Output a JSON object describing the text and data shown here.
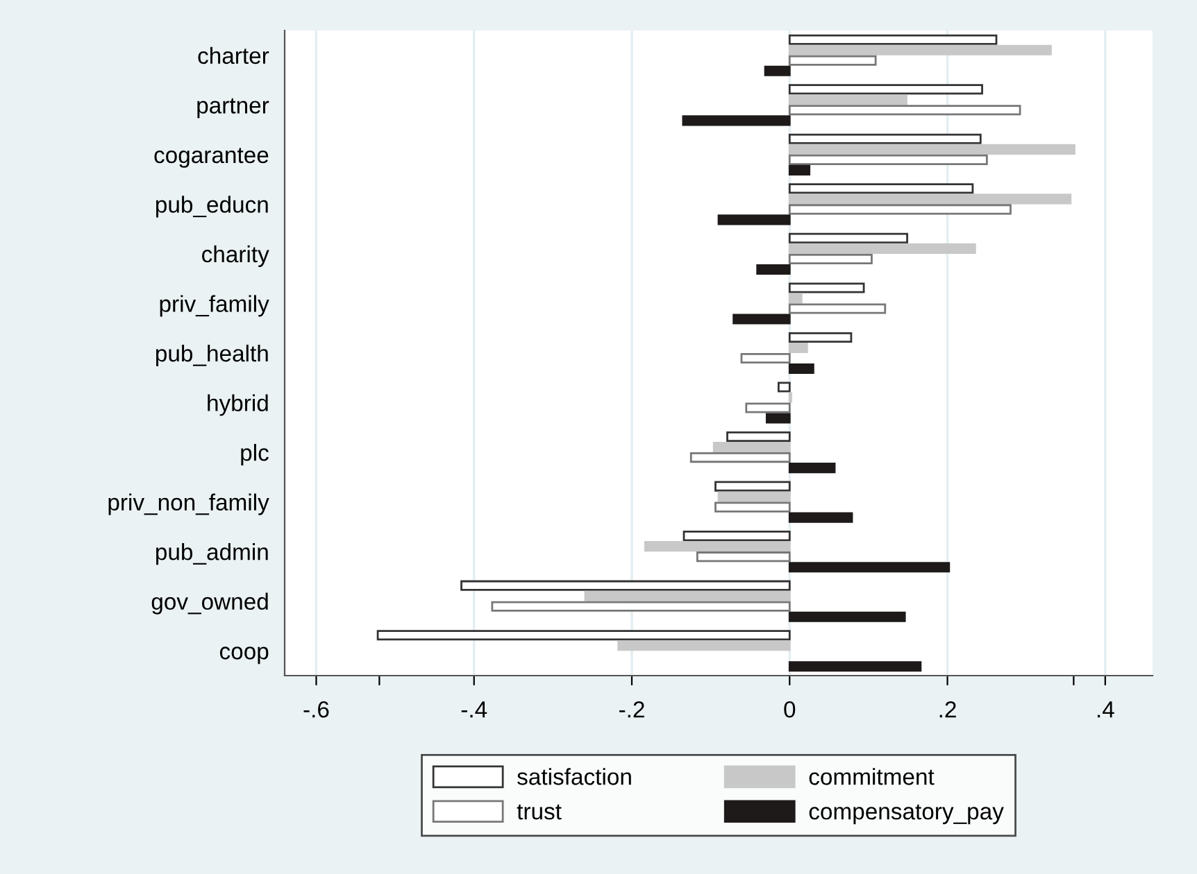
{
  "chart_data": {
    "type": "bar",
    "orientation": "horizontal",
    "categories": [
      "charter",
      "partner",
      "cogarantee",
      "pub_educn",
      "charity",
      "priv_family",
      "pub_health",
      "hybrid",
      "plc",
      "priv_non_family",
      "pub_admin",
      "gov_owned",
      "coop"
    ],
    "series": [
      {
        "name": "satisfaction",
        "color": "#ffffff",
        "values": [
          0.262,
          0.244,
          0.242,
          0.232,
          0.149,
          0.094,
          0.078,
          -0.014,
          -0.079,
          -0.094,
          -0.134,
          -0.416,
          -0.522
        ]
      },
      {
        "name": "commitment",
        "color": "#c8c8c8",
        "values": [
          0.331,
          0.148,
          0.361,
          0.356,
          0.235,
          0.015,
          0.022,
          0.002,
          -0.096,
          -0.09,
          -0.183,
          -0.259,
          -0.217
        ]
      },
      {
        "name": "trust",
        "color": "#ffffff",
        "values": [
          0.109,
          0.292,
          0.25,
          0.28,
          0.104,
          0.121,
          -0.061,
          -0.055,
          -0.125,
          -0.094,
          -0.117,
          -0.377,
          null
        ]
      },
      {
        "name": "compensatory_pay",
        "color": "#1e1a1a",
        "values": [
          -0.031,
          -0.135,
          0.025,
          -0.09,
          -0.041,
          -0.071,
          0.03,
          -0.029,
          0.057,
          0.079,
          0.202,
          0.146,
          0.166
        ]
      }
    ],
    "xlim": [
      -0.64,
      0.46
    ],
    "xticks": [
      {
        "value": -0.6,
        "label": "-.6"
      },
      {
        "value": -0.52,
        "label": null
      },
      {
        "value": -0.4,
        "label": "-.4"
      },
      {
        "value": -0.2,
        "label": "-.2"
      },
      0,
      {
        "value": 0.2,
        "label": ".2"
      },
      {
        "value": 0.36,
        "label": null
      },
      {
        "value": 0.4,
        "label": ".4"
      }
    ],
    "grid": "x",
    "legend": "bottom"
  }
}
